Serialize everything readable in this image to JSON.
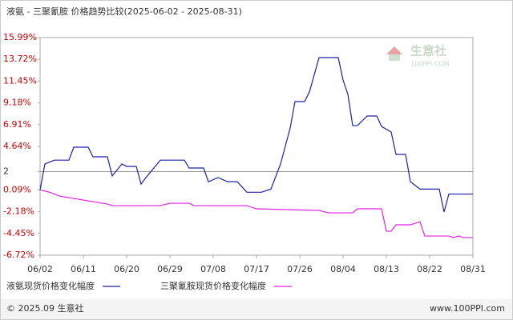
{
  "chart_data": {
    "type": "line",
    "title": "液氨 - 三聚氰胺 价格趋势比较(2025-06-02 - 2025-08-31)",
    "xlim": [
      "06/02",
      "08/31"
    ],
    "xticks": [
      "06/02",
      "06/11",
      "06/20",
      "06/29",
      "07/08",
      "07/17",
      "07/26",
      "08/04",
      "08/13",
      "08/22",
      "08/31"
    ],
    "ylim": [
      -6.72,
      15.99
    ],
    "yticks": [
      {
        "value": 15.99,
        "label": "15.99%"
      },
      {
        "value": 13.72,
        "label": "13.72%"
      },
      {
        "value": 11.45,
        "label": "11.45%"
      },
      {
        "value": 9.18,
        "label": "9.18%"
      },
      {
        "value": 6.91,
        "label": "6.91%"
      },
      {
        "value": 4.64,
        "label": "4.64%"
      },
      2,
      {
        "value": 0.09,
        "label": "0.09%"
      },
      {
        "value": -2.18,
        "label": "-2.18%"
      },
      {
        "value": -4.45,
        "label": "-4.45%"
      },
      {
        "value": -6.72,
        "label": "-6.72%"
      }
    ],
    "hline": 2,
    "grid": false,
    "series": [
      {
        "name": "液氨现货价格变化幅度",
        "color": "#1f1fb4",
        "x": [
          "06/02",
          "06/03",
          "06/05",
          "06/08",
          "06/09",
          "06/12",
          "06/13",
          "06/16",
          "06/17",
          "06/19",
          "06/20",
          "06/22",
          "06/23",
          "06/24",
          "06/27",
          "07/02",
          "07/03",
          "07/06",
          "07/07",
          "07/09",
          "07/11",
          "07/13",
          "07/15",
          "07/18",
          "07/20",
          "07/22",
          "07/24",
          "07/25",
          "07/27",
          "07/28",
          "07/30",
          "08/03",
          "08/04",
          "08/05",
          "08/06",
          "08/07",
          "08/09",
          "08/11",
          "08/12",
          "08/14",
          "08/15",
          "08/17",
          "08/18",
          "08/20",
          "08/24",
          "08/25",
          "08/26",
          "08/31"
        ],
        "values": [
          0.09,
          2.8,
          3.2,
          3.2,
          4.55,
          4.55,
          3.55,
          3.55,
          1.55,
          2.8,
          2.55,
          2.55,
          0.7,
          1.38,
          3.2,
          3.2,
          2.38,
          2.38,
          0.95,
          1.38,
          0.95,
          0.95,
          -0.15,
          -0.15,
          0.18,
          2.8,
          6.55,
          9.31,
          9.31,
          10.31,
          13.9,
          13.9,
          11.56,
          10.06,
          6.81,
          6.81,
          7.81,
          7.81,
          6.72,
          6.14,
          3.8,
          3.8,
          0.95,
          0.18,
          0.18,
          -2.21,
          -0.34,
          -0.34
        ]
      },
      {
        "name": "三聚氰胺现货价格变化幅度",
        "color": "#e020e0",
        "x": [
          "06/02",
          "06/04",
          "06/06",
          "06/09",
          "06/12",
          "06/16",
          "06/17",
          "06/27",
          "06/29",
          "07/03",
          "07/04",
          "07/15",
          "07/17",
          "07/30",
          "08/01",
          "08/06",
          "08/07",
          "08/12",
          "08/13",
          "08/14",
          "08/15",
          "08/18",
          "08/20",
          "08/21",
          "08/26",
          "08/27",
          "08/28",
          "08/29",
          "08/31"
        ],
        "values": [
          0.09,
          -0.15,
          -0.55,
          -0.8,
          -1.05,
          -1.38,
          -1.55,
          -1.55,
          -1.3,
          -1.3,
          -1.55,
          -1.55,
          -1.88,
          -2.05,
          -2.3,
          -2.3,
          -1.88,
          -1.88,
          -4.22,
          -4.22,
          -3.55,
          -3.55,
          -3.22,
          -4.72,
          -4.72,
          -4.88,
          -4.72,
          -4.88,
          -4.88
        ]
      }
    ],
    "watermark_name": "生意社",
    "watermark_url": "100PPI.COM",
    "footer_left": "© 2025.09 生意社",
    "footer_right": "www.100PPI.com"
  }
}
